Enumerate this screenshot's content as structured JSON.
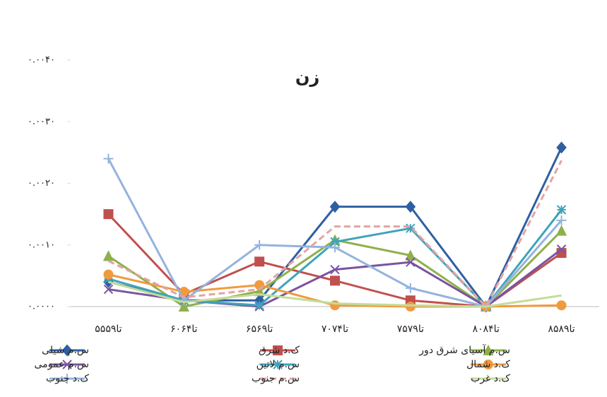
{
  "chart_data": {
    "type": "line",
    "title": "زن",
    "categories": [
      "۵۵تا۵۹",
      "۶۰تا۶۴",
      "۶۵تا۶۹",
      "۷۰تا۷۴",
      "۷۵تا۷۹",
      "۸۰تا۸۴",
      "۸۵تا۸۹"
    ],
    "ylim": [
      0,
      0.004
    ],
    "yticks": [
      {
        "value": 0,
        "label": "۰.۰۰۰۰"
      },
      {
        "value": 0.001,
        "label": "۰.۰۰۱۰"
      },
      {
        "value": 0.002,
        "label": "۰.۰۰۲۰"
      },
      {
        "value": 0.003,
        "label": "۰.۰۰۳۰"
      },
      {
        "value": 0.004,
        "label": "۰.۰۰۴۰"
      }
    ],
    "grid": false,
    "series": [
      {
        "name": "س.م شیلی",
        "color": "#2e5fa3",
        "marker": "diamond",
        "values": [
          0.0004,
          0.0001,
          0.0001,
          0.00162,
          0.00162,
          0.0,
          0.00258
        ]
      },
      {
        "name": "ک.د شرق",
        "color": "#c0504d",
        "marker": "square",
        "values": [
          0.0015,
          0.0002,
          0.00073,
          0.00042,
          0.0001,
          0.0,
          0.00087
        ]
      },
      {
        "name": "س.م آسیای شرق دور",
        "color": "#8fb04a",
        "marker": "triangle",
        "values": [
          0.00082,
          0.0,
          0.00025,
          0.00108,
          0.00083,
          0.0,
          0.00123
        ]
      },
      {
        "name": "س.م عمومی",
        "color": "#7a54a0",
        "marker": "x",
        "values": [
          0.00028,
          0.0001,
          0.0,
          0.0006,
          0.00072,
          0.0,
          0.00093
        ]
      },
      {
        "name": "س.م لاتین",
        "color": "#3fa3bb",
        "marker": "asterisk",
        "values": [
          0.00045,
          0.0001,
          2e-05,
          0.00105,
          0.00127,
          0.0,
          0.00157
        ]
      },
      {
        "name": "ک.د شمال",
        "color": "#f09a3e",
        "marker": "circle",
        "values": [
          0.00052,
          0.00024,
          0.00035,
          2e-05,
          0.0,
          0.0,
          2e-05
        ]
      },
      {
        "name": "ک.د جنوب",
        "color": "#94b3dd",
        "marker": "plus",
        "values": [
          0.0024,
          0.0001,
          0.001,
          0.00096,
          0.0003,
          0.0,
          0.0014
        ]
      },
      {
        "name": "س.م جنوب",
        "color": "#e4a3a3",
        "marker": "none",
        "dash": true,
        "values": [
          0.00074,
          0.00015,
          0.00028,
          0.0013,
          0.0013,
          0.0,
          0.00237
        ]
      },
      {
        "name": "ک.د غرب",
        "color": "#c3dc9a",
        "marker": "none",
        "values": [
          0.0004,
          7e-05,
          0.0002,
          5e-05,
          2e-05,
          0.0,
          0.00018
        ]
      }
    ]
  }
}
